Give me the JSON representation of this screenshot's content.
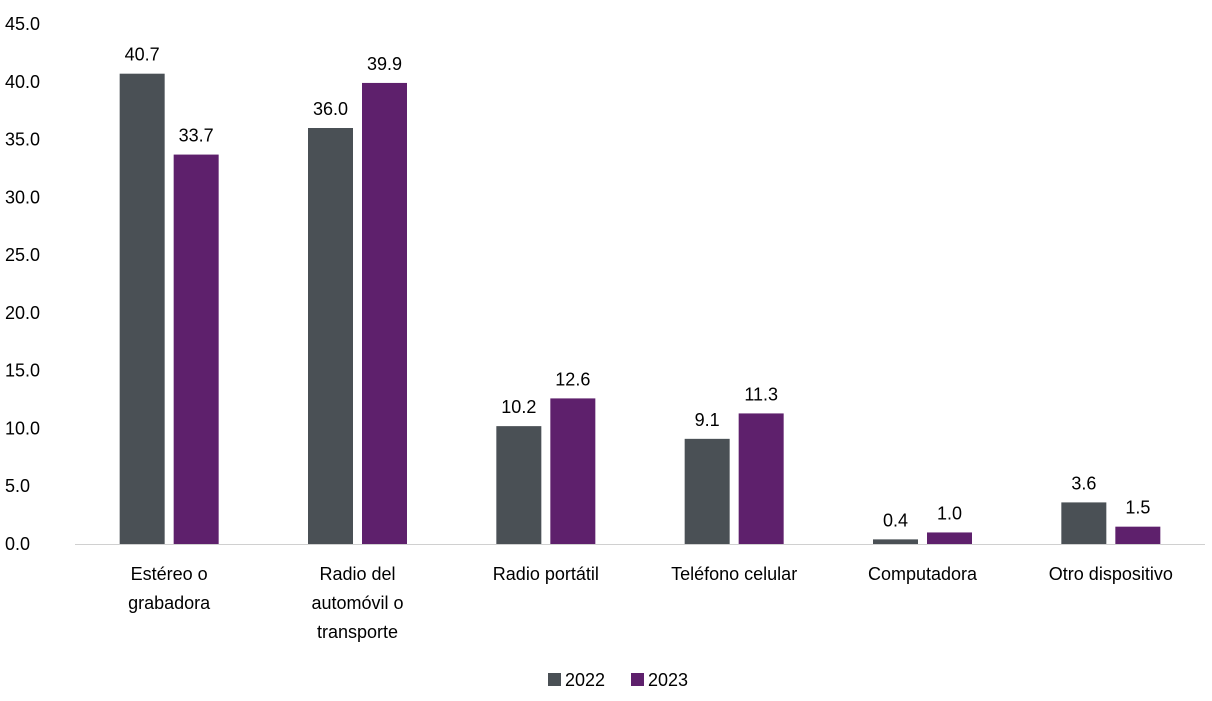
{
  "chart_data": {
    "type": "bar",
    "categories": [
      [
        "Estéreo o",
        "grabadora"
      ],
      [
        "Radio del",
        "automóvil o",
        "transporte"
      ],
      [
        "Radio portátil"
      ],
      [
        "Teléfono celular"
      ],
      [
        "Computadora"
      ],
      [
        "Otro dispositivo"
      ]
    ],
    "series": [
      {
        "name": "2022",
        "color": "#4a5055",
        "values": [
          40.7,
          36.0,
          10.2,
          9.1,
          0.4,
          3.6
        ],
        "labels": [
          "40.7",
          "36.0",
          "10.2",
          "9.1",
          "0.4",
          "3.6"
        ]
      },
      {
        "name": "2023",
        "color": "#5e206c",
        "values": [
          33.7,
          39.9,
          12.6,
          11.3,
          1.0,
          1.5
        ],
        "labels": [
          "33.7",
          "39.9",
          "12.6",
          "11.3",
          "1.0",
          "1.5"
        ]
      }
    ],
    "yticks": [
      "0.0",
      "5.0",
      "10.0",
      "15.0",
      "20.0",
      "25.0",
      "30.0",
      "35.0",
      "40.0",
      "45.0"
    ],
    "ylim": [
      0,
      45
    ],
    "title": "",
    "xlabel": "",
    "ylabel": "",
    "grid": false,
    "legend_position": "bottom-center"
  }
}
